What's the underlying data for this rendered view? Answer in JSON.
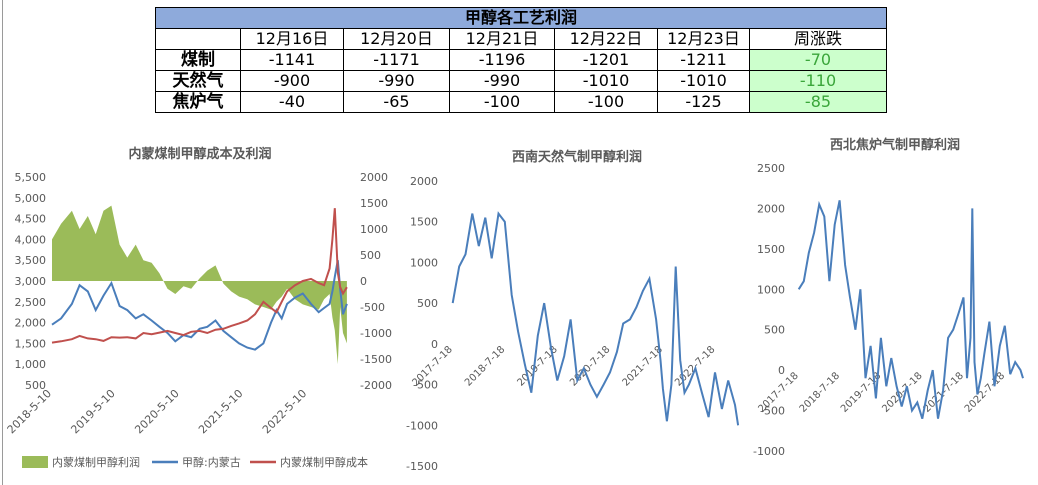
{
  "table": {
    "title": "甲醇各工艺利润",
    "headers": [
      "",
      "12月16日",
      "12月20日",
      "12月21日",
      "12月22日",
      "12月23日",
      "周涨跌"
    ],
    "rows": [
      {
        "label": "煤制",
        "values": [
          "-1141",
          "-1171",
          "-1196",
          "-1201",
          "-1211"
        ],
        "change": "-70"
      },
      {
        "label": "天然气",
        "values": [
          "-900",
          "-990",
          "-990",
          "-1010",
          "-1010"
        ],
        "change": "-110"
      },
      {
        "label": "焦炉气",
        "values": [
          "-40",
          "-65",
          "-100",
          "-100",
          "-125"
        ],
        "change": "-85"
      }
    ]
  },
  "colors": {
    "header_bg": "#8eaadb",
    "change_bg": "#ccffcc",
    "change_text": "#3aa63a",
    "profit_fill": "#9bbb59",
    "blue_line": "#4a7ebb",
    "red_line": "#c0504d"
  },
  "chart_data": [
    {
      "type": "area",
      "title": "内蒙煤制甲醇成本及利润",
      "x_ticks": [
        "2018-5-10",
        "2019-5-10",
        "2020-5-10",
        "2021-5-10",
        "2022-5-10"
      ],
      "y_left_ticks": [
        "5,500",
        "5,000",
        "4,500",
        "4,000",
        "3,500",
        "3,000",
        "2,500",
        "2,000",
        "1,500",
        "1,000",
        "500"
      ],
      "y_right_ticks": [
        "2000",
        "1500",
        "1000",
        "500",
        "0",
        "-500",
        "-1000",
        "-1500",
        "-2000"
      ],
      "ylim_left": [
        500,
        5500
      ],
      "ylim_right": [
        -2000,
        2000
      ],
      "x_range": [
        "2018-05-10",
        "2023-01-10"
      ],
      "series": [
        {
          "name": "内蒙煤制甲醇利润",
          "axis": "right",
          "type": "area",
          "x": [
            "2018-05-10",
            "2018-07-01",
            "2018-09-01",
            "2018-10-15",
            "2018-12-01",
            "2019-01-15",
            "2019-03-01",
            "2019-04-15",
            "2019-06-01",
            "2019-07-15",
            "2019-09-01",
            "2019-10-15",
            "2019-12-01",
            "2020-01-15",
            "2020-03-01",
            "2020-04-15",
            "2020-06-01",
            "2020-07-15",
            "2020-09-01",
            "2020-10-15",
            "2020-12-01",
            "2021-01-15",
            "2021-03-01",
            "2021-04-15",
            "2021-06-01",
            "2021-07-15",
            "2021-09-01",
            "2021-10-15",
            "2021-11-15",
            "2021-12-15",
            "2022-01-15",
            "2022-03-01",
            "2022-04-15",
            "2022-06-01",
            "2022-07-15",
            "2022-08-15",
            "2022-09-15",
            "2022-10-01",
            "2022-10-15",
            "2022-11-01",
            "2022-11-15",
            "2022-12-01",
            "2022-12-23"
          ],
          "values": [
            800,
            1100,
            1350,
            1000,
            1250,
            900,
            1350,
            1450,
            700,
            450,
            700,
            400,
            350,
            150,
            -150,
            -250,
            -100,
            -150,
            50,
            200,
            300,
            -50,
            -200,
            -300,
            -350,
            -450,
            -500,
            -550,
            -400,
            -300,
            -150,
            -350,
            -450,
            -500,
            -550,
            -350,
            -250,
            -700,
            -950,
            -1600,
            -500,
            -1000,
            -1200
          ]
        },
        {
          "name": "甲醇:内蒙古",
          "axis": "left",
          "type": "line",
          "x": [
            "2018-05-10",
            "2018-07-01",
            "2018-09-01",
            "2018-10-15",
            "2018-12-01",
            "2019-01-15",
            "2019-03-01",
            "2019-04-15",
            "2019-06-01",
            "2019-07-15",
            "2019-09-01",
            "2019-10-15",
            "2019-12-01",
            "2020-01-15",
            "2020-03-01",
            "2020-04-15",
            "2020-06-01",
            "2020-07-15",
            "2020-09-01",
            "2020-10-15",
            "2020-12-01",
            "2021-01-15",
            "2021-03-01",
            "2021-04-15",
            "2021-06-01",
            "2021-07-15",
            "2021-09-01",
            "2021-10-15",
            "2021-11-15",
            "2021-12-15",
            "2022-01-15",
            "2022-03-01",
            "2022-04-15",
            "2022-06-01",
            "2022-07-15",
            "2022-08-15",
            "2022-09-15",
            "2022-10-01",
            "2022-10-15",
            "2022-11-01",
            "2022-11-15",
            "2022-12-01",
            "2022-12-23"
          ],
          "values": [
            1950,
            2100,
            2450,
            2900,
            2750,
            2300,
            2650,
            2950,
            2400,
            2300,
            2100,
            2200,
            2050,
            1900,
            1750,
            1550,
            1700,
            1650,
            1850,
            1900,
            2050,
            1800,
            1650,
            1500,
            1400,
            1350,
            1500,
            2000,
            2300,
            2100,
            2450,
            2600,
            2700,
            2450,
            2250,
            2350,
            2450,
            2750,
            3100,
            3500,
            2800,
            2200,
            2450
          ]
        },
        {
          "name": "内蒙煤制甲醇成本",
          "axis": "left",
          "type": "line",
          "x": [
            "2018-05-10",
            "2018-07-01",
            "2018-09-01",
            "2018-10-15",
            "2018-12-01",
            "2019-01-15",
            "2019-03-01",
            "2019-04-15",
            "2019-06-01",
            "2019-07-15",
            "2019-09-01",
            "2019-10-15",
            "2019-12-01",
            "2020-01-15",
            "2020-03-01",
            "2020-04-15",
            "2020-06-01",
            "2020-07-15",
            "2020-09-01",
            "2020-10-15",
            "2020-12-01",
            "2021-01-15",
            "2021-03-01",
            "2021-04-15",
            "2021-06-01",
            "2021-07-15",
            "2021-09-01",
            "2021-10-15",
            "2021-11-15",
            "2021-12-15",
            "2022-01-15",
            "2022-03-01",
            "2022-04-15",
            "2022-06-01",
            "2022-07-15",
            "2022-08-15",
            "2022-09-15",
            "2022-10-01",
            "2022-10-15",
            "2022-11-01",
            "2022-11-15",
            "2022-12-01",
            "2022-12-23"
          ],
          "values": [
            1520,
            1550,
            1600,
            1680,
            1620,
            1600,
            1560,
            1650,
            1640,
            1650,
            1620,
            1750,
            1720,
            1760,
            1800,
            1750,
            1700,
            1780,
            1800,
            1750,
            1830,
            1850,
            1920,
            1980,
            2050,
            2200,
            2500,
            2350,
            2250,
            2500,
            2750,
            2900,
            3000,
            3050,
            2950,
            2900,
            3300,
            4000,
            4750,
            3200,
            2850,
            2700,
            2850
          ]
        }
      ]
    },
    {
      "type": "line",
      "title": "西南天然气制甲醇利润",
      "x_ticks": [
        "2017-7-18",
        "2018-7-18",
        "2019-7-18",
        "2020-7-18",
        "2021-7-18",
        "2022-7-18"
      ],
      "y_ticks": [
        "2000",
        "1500",
        "1000",
        "500",
        "0",
        "-500",
        "-1000",
        "-1500"
      ],
      "ylim": [
        -1500,
        2000
      ],
      "series": [
        {
          "name": "",
          "x": [
            "2017-07-18",
            "2017-09-01",
            "2017-10-15",
            "2017-12-01",
            "2018-01-15",
            "2018-03-01",
            "2018-04-15",
            "2018-06-01",
            "2018-07-15",
            "2018-09-01",
            "2018-10-15",
            "2018-12-01",
            "2019-01-15",
            "2019-03-01",
            "2019-04-15",
            "2019-06-01",
            "2019-07-15",
            "2019-09-01",
            "2019-10-15",
            "2019-12-01",
            "2020-01-15",
            "2020-03-01",
            "2020-04-15",
            "2020-06-01",
            "2020-07-15",
            "2020-09-01",
            "2020-10-15",
            "2020-12-01",
            "2021-01-15",
            "2021-03-01",
            "2021-04-15",
            "2021-06-01",
            "2021-07-01",
            "2021-07-18",
            "2021-08-15",
            "2021-09-15",
            "2021-10-15",
            "2021-11-15",
            "2021-12-15",
            "2022-01-15",
            "2022-03-01",
            "2022-04-15",
            "2022-06-01",
            "2022-07-15",
            "2022-09-01",
            "2022-10-15",
            "2022-12-01",
            "2022-12-23"
          ],
          "values": [
            500,
            950,
            1100,
            1600,
            1200,
            1550,
            1050,
            1600,
            1500,
            600,
            150,
            -250,
            -600,
            100,
            500,
            -50,
            -450,
            -150,
            300,
            -450,
            -300,
            -500,
            -650,
            -500,
            -350,
            -100,
            250,
            300,
            450,
            650,
            800,
            300,
            -200,
            -550,
            -950,
            -500,
            950,
            -200,
            -600,
            -500,
            -300,
            -600,
            -900,
            -350,
            -800,
            -450,
            -750,
            -1000
          ]
        }
      ]
    },
    {
      "type": "line",
      "title": "西北焦炉气制甲醇利润",
      "x_ticks": [
        "2017-7-18",
        "2018-7-18",
        "2019-7-18",
        "2020-7-18",
        "2021-7-18",
        "2022-7-18"
      ],
      "y_ticks": [
        "2500",
        "2000",
        "1500",
        "1000",
        "500",
        "0",
        "-500",
        "-1000"
      ],
      "ylim": [
        -1000,
        2500
      ],
      "series": [
        {
          "name": "",
          "x": [
            "2017-07-18",
            "2017-09-01",
            "2017-10-15",
            "2017-12-01",
            "2018-01-15",
            "2018-03-01",
            "2018-04-15",
            "2018-06-01",
            "2018-07-15",
            "2018-09-01",
            "2018-10-15",
            "2018-12-01",
            "2019-01-15",
            "2019-03-01",
            "2019-04-15",
            "2019-06-01",
            "2019-07-15",
            "2019-09-01",
            "2019-10-15",
            "2019-12-01",
            "2020-01-15",
            "2020-03-01",
            "2020-04-15",
            "2020-06-01",
            "2020-07-15",
            "2020-09-01",
            "2020-10-15",
            "2020-12-01",
            "2021-01-15",
            "2021-03-01",
            "2021-04-15",
            "2021-06-01",
            "2021-07-15",
            "2021-08-15",
            "2021-09-15",
            "2021-10-01",
            "2021-10-20",
            "2021-11-15",
            "2021-12-15",
            "2022-01-15",
            "2022-03-01",
            "2022-04-15",
            "2022-06-01",
            "2022-07-15",
            "2022-09-01",
            "2022-10-15",
            "2022-12-01",
            "2022-12-23"
          ],
          "values": [
            1000,
            1100,
            1450,
            1700,
            2050,
            1900,
            1100,
            1800,
            2100,
            1300,
            900,
            500,
            1000,
            -100,
            300,
            -350,
            400,
            -200,
            150,
            -200,
            -450,
            -200,
            -500,
            -400,
            -600,
            -250,
            0,
            -600,
            -250,
            400,
            500,
            700,
            900,
            -100,
            400,
            2000,
            100,
            -300,
            -100,
            200,
            600,
            -200,
            300,
            550,
            -50,
            100,
            0,
            -100
          ]
        }
      ]
    }
  ],
  "legend": [
    "内蒙煤制甲醇利润",
    "甲醇:内蒙古",
    "内蒙煤制甲醇成本"
  ]
}
